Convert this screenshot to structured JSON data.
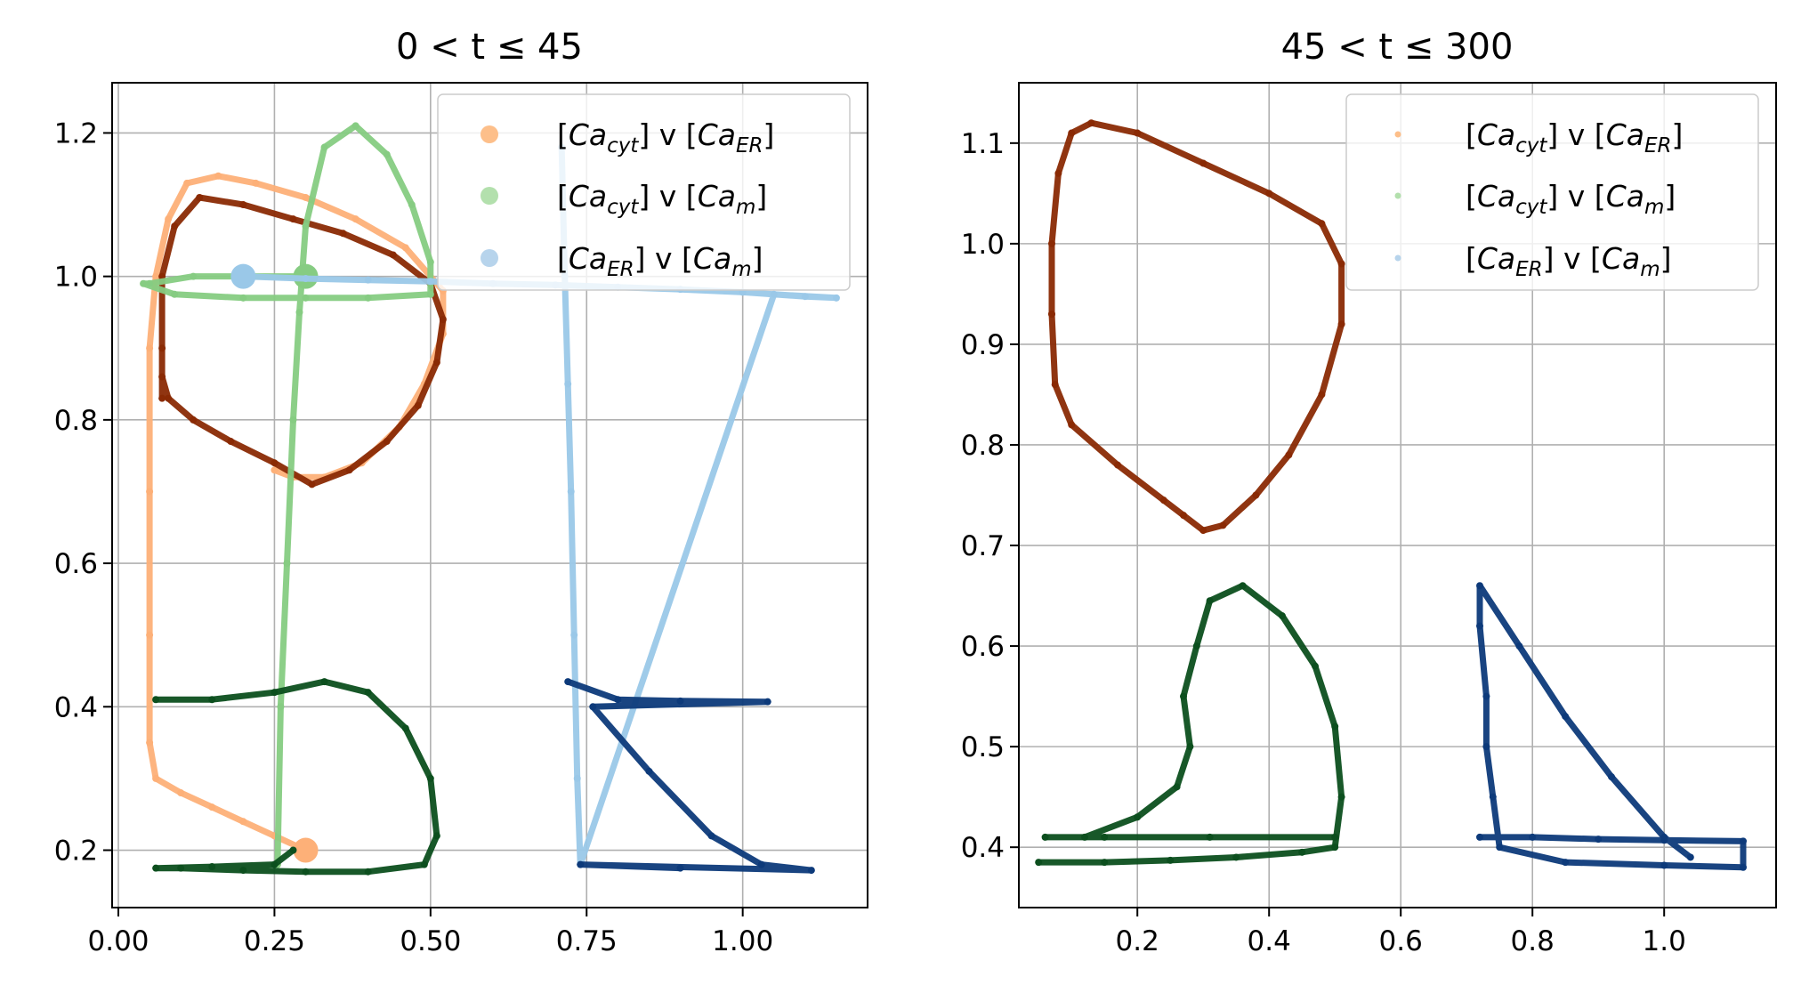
{
  "chart_data": [
    {
      "type": "scatter",
      "title": "0 < t ≤ 45",
      "xlim": [
        -0.01,
        1.2
      ],
      "ylim": [
        0.12,
        1.27
      ],
      "xticks": [
        "0.00",
        "0.25",
        "0.50",
        "0.75",
        "1.00"
      ],
      "xtick_values": [
        0.0,
        0.25,
        0.5,
        0.75,
        1.0
      ],
      "yticks": [
        "0.2",
        "0.4",
        "0.6",
        "0.8",
        "1.0",
        "1.2"
      ],
      "ytick_values": [
        0.2,
        0.4,
        0.6,
        0.8,
        1.0,
        1.2
      ],
      "grid": true,
      "legend_position": "top-right",
      "legend": [
        {
          "label": "[Ca_cyt] v [Ca_ER]",
          "color": "#fdbf8a"
        },
        {
          "label": "[Ca_cyt] v [Ca_m]",
          "color": "#b3e0ad"
        },
        {
          "label": "[Ca_ER] v [Ca_m]",
          "color": "#b7d4ec"
        }
      ],
      "series": [
        {
          "color": "#fdb078",
          "marker_size": "large",
          "points": [
            [
              0.3,
              0.2
            ],
            [
              0.25,
              0.22
            ],
            [
              0.2,
              0.24
            ],
            [
              0.15,
              0.26
            ],
            [
              0.1,
              0.28
            ],
            [
              0.06,
              0.3
            ],
            [
              0.05,
              0.35
            ],
            [
              0.05,
              0.5
            ],
            [
              0.05,
              0.7
            ],
            [
              0.05,
              0.9
            ],
            [
              0.06,
              1.0
            ],
            [
              0.08,
              1.08
            ],
            [
              0.11,
              1.13
            ],
            [
              0.16,
              1.14
            ],
            [
              0.22,
              1.13
            ],
            [
              0.3,
              1.11
            ],
            [
              0.38,
              1.08
            ],
            [
              0.46,
              1.04
            ],
            [
              0.52,
              0.98
            ],
            [
              0.52,
              0.92
            ],
            [
              0.49,
              0.85
            ],
            [
              0.45,
              0.79
            ],
            [
              0.39,
              0.74
            ],
            [
              0.33,
              0.72
            ],
            [
              0.28,
              0.72
            ],
            [
              0.25,
              0.73
            ]
          ]
        },
        {
          "color": "#8a2a04",
          "points": [
            [
              0.07,
              0.83
            ],
            [
              0.07,
              0.9
            ],
            [
              0.07,
              1.0
            ],
            [
              0.09,
              1.07
            ],
            [
              0.13,
              1.11
            ],
            [
              0.2,
              1.1
            ],
            [
              0.28,
              1.08
            ],
            [
              0.36,
              1.06
            ],
            [
              0.44,
              1.03
            ],
            [
              0.5,
              0.99
            ],
            [
              0.52,
              0.94
            ],
            [
              0.51,
              0.88
            ],
            [
              0.48,
              0.82
            ],
            [
              0.43,
              0.77
            ],
            [
              0.37,
              0.73
            ],
            [
              0.31,
              0.71
            ],
            [
              0.25,
              0.74
            ],
            [
              0.18,
              0.77
            ],
            [
              0.12,
              0.8
            ],
            [
              0.08,
              0.83
            ],
            [
              0.07,
              0.86
            ]
          ]
        },
        {
          "color": "#86cc82",
          "marker_size": "large",
          "points": [
            [
              0.3,
              1.0
            ],
            [
              0.2,
              1.0
            ],
            [
              0.12,
              1.0
            ],
            [
              0.05,
              0.99
            ],
            [
              0.04,
              0.99
            ],
            [
              0.09,
              0.975
            ],
            [
              0.2,
              0.97
            ],
            [
              0.3,
              0.97
            ],
            [
              0.4,
              0.97
            ],
            [
              0.5,
              0.975
            ],
            [
              0.5,
              1.02
            ],
            [
              0.47,
              1.1
            ],
            [
              0.43,
              1.17
            ],
            [
              0.38,
              1.21
            ],
            [
              0.33,
              1.18
            ],
            [
              0.3,
              1.07
            ],
            [
              0.29,
              0.95
            ],
            [
              0.28,
              0.8
            ],
            [
              0.27,
              0.6
            ],
            [
              0.26,
              0.4
            ],
            [
              0.255,
              0.18
            ]
          ]
        },
        {
          "color": "#0c4f1e",
          "points": [
            [
              0.06,
              0.41
            ],
            [
              0.15,
              0.41
            ],
            [
              0.25,
              0.42
            ],
            [
              0.33,
              0.435
            ],
            [
              0.4,
              0.42
            ],
            [
              0.46,
              0.37
            ],
            [
              0.5,
              0.3
            ],
            [
              0.51,
              0.22
            ],
            [
              0.49,
              0.18
            ],
            [
              0.4,
              0.17
            ],
            [
              0.3,
              0.17
            ],
            [
              0.2,
              0.172
            ],
            [
              0.1,
              0.175
            ],
            [
              0.06,
              0.175
            ],
            [
              0.15,
              0.177
            ],
            [
              0.25,
              0.18
            ],
            [
              0.28,
              0.2
            ]
          ]
        },
        {
          "color": "#9ac8e8",
          "marker_size": "large",
          "points": [
            [
              0.2,
              1.0
            ],
            [
              0.3,
              0.997
            ],
            [
              0.4,
              0.995
            ],
            [
              0.5,
              0.993
            ],
            [
              0.6,
              0.99
            ],
            [
              0.7,
              0.988
            ],
            [
              0.8,
              0.985
            ],
            [
              0.9,
              0.982
            ],
            [
              1.0,
              0.978
            ],
            [
              1.1,
              0.972
            ],
            [
              1.15,
              0.97
            ],
            [
              1.05,
              0.975
            ],
            [
              0.74,
              0.18
            ],
            [
              0.735,
              0.3
            ],
            [
              0.73,
              0.5
            ],
            [
              0.725,
              0.7
            ],
            [
              0.72,
              0.85
            ],
            [
              0.715,
              1.0
            ],
            [
              0.71,
              1.18
            ]
          ]
        },
        {
          "color": "#0d3a7a",
          "points": [
            [
              0.72,
              0.435
            ],
            [
              0.8,
              0.41
            ],
            [
              0.9,
              0.408
            ],
            [
              1.04,
              0.407
            ],
            [
              0.76,
              0.4
            ],
            [
              0.85,
              0.31
            ],
            [
              0.95,
              0.22
            ],
            [
              1.03,
              0.18
            ],
            [
              1.11,
              0.172
            ],
            [
              0.74,
              0.18
            ],
            [
              0.9,
              0.175
            ]
          ]
        }
      ]
    },
    {
      "type": "scatter",
      "title": "45 < t ≤ 300",
      "xlim": [
        0.02,
        1.17
      ],
      "ylim": [
        0.34,
        1.16
      ],
      "xticks": [
        "0.2",
        "0.4",
        "0.6",
        "0.8",
        "1.0"
      ],
      "xtick_values": [
        0.2,
        0.4,
        0.6,
        0.8,
        1.0
      ],
      "yticks": [
        "0.4",
        "0.5",
        "0.6",
        "0.7",
        "0.8",
        "0.9",
        "1.0",
        "1.1"
      ],
      "ytick_values": [
        0.4,
        0.5,
        0.6,
        0.7,
        0.8,
        0.9,
        1.0,
        1.1
      ],
      "grid": true,
      "legend_position": "top-right",
      "legend": [
        {
          "label": "[Ca_cyt] v [Ca_ER]",
          "color": "#fdbf8a"
        },
        {
          "label": "[Ca_cyt] v [Ca_m]",
          "color": "#b3e0ad"
        },
        {
          "label": "[Ca_ER] v [Ca_m]",
          "color": "#b7d4ec"
        }
      ],
      "series": [
        {
          "color": "#8a2a04",
          "points": [
            [
              0.07,
              0.93
            ],
            [
              0.07,
              1.0
            ],
            [
              0.08,
              1.07
            ],
            [
              0.1,
              1.11
            ],
            [
              0.13,
              1.12
            ],
            [
              0.2,
              1.11
            ],
            [
              0.3,
              1.08
            ],
            [
              0.4,
              1.05
            ],
            [
              0.48,
              1.02
            ],
            [
              0.51,
              0.98
            ],
            [
              0.51,
              0.92
            ],
            [
              0.48,
              0.85
            ],
            [
              0.43,
              0.79
            ],
            [
              0.38,
              0.75
            ],
            [
              0.33,
              0.72
            ],
            [
              0.3,
              0.715
            ],
            [
              0.27,
              0.73
            ],
            [
              0.24,
              0.745
            ],
            [
              0.17,
              0.78
            ],
            [
              0.1,
              0.82
            ],
            [
              0.075,
              0.86
            ],
            [
              0.07,
              0.93
            ]
          ]
        },
        {
          "color": "#0c4f1e",
          "points": [
            [
              0.05,
              0.385
            ],
            [
              0.15,
              0.385
            ],
            [
              0.25,
              0.387
            ],
            [
              0.35,
              0.39
            ],
            [
              0.45,
              0.395
            ],
            [
              0.5,
              0.4
            ],
            [
              0.51,
              0.45
            ],
            [
              0.5,
              0.52
            ],
            [
              0.47,
              0.58
            ],
            [
              0.42,
              0.63
            ],
            [
              0.36,
              0.66
            ],
            [
              0.31,
              0.645
            ],
            [
              0.29,
              0.6
            ],
            [
              0.27,
              0.55
            ],
            [
              0.28,
              0.5
            ],
            [
              0.26,
              0.46
            ],
            [
              0.2,
              0.43
            ],
            [
              0.12,
              0.41
            ],
            [
              0.06,
              0.41
            ],
            [
              0.15,
              0.41
            ],
            [
              0.31,
              0.41
            ],
            [
              0.5,
              0.41
            ]
          ]
        },
        {
          "color": "#0d3a7a",
          "points": [
            [
              0.72,
              0.41
            ],
            [
              0.8,
              0.41
            ],
            [
              0.9,
              0.408
            ],
            [
              1.0,
              0.407
            ],
            [
              1.12,
              0.406
            ],
            [
              1.12,
              0.38
            ],
            [
              1.0,
              0.382
            ],
            [
              0.85,
              0.385
            ],
            [
              0.75,
              0.4
            ],
            [
              0.74,
              0.45
            ],
            [
              0.73,
              0.5
            ],
            [
              0.73,
              0.55
            ],
            [
              0.72,
              0.62
            ],
            [
              0.72,
              0.66
            ],
            [
              0.78,
              0.6
            ],
            [
              0.85,
              0.53
            ],
            [
              0.92,
              0.47
            ],
            [
              1.0,
              0.41
            ],
            [
              1.04,
              0.39
            ]
          ]
        }
      ]
    }
  ]
}
